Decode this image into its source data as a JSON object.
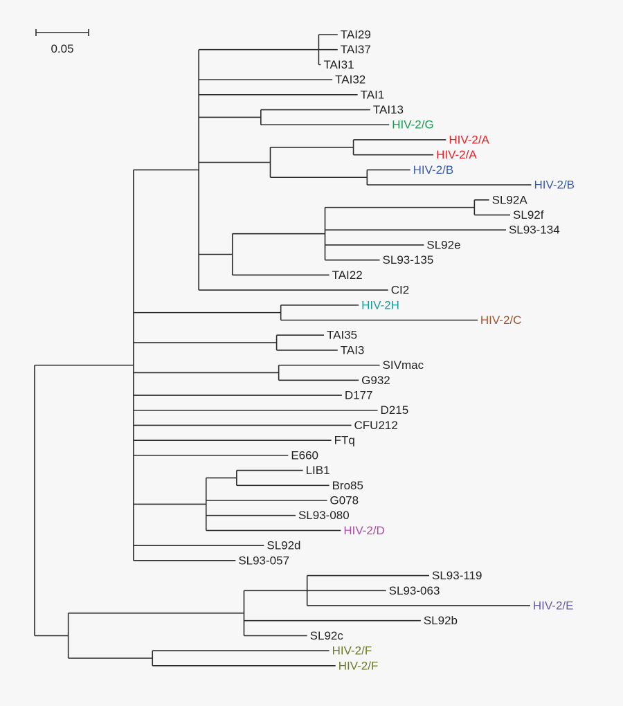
{
  "scale_bar": {
    "label": "0.05",
    "value": 0.05
  },
  "colors": {
    "default": "#222222",
    "HIV-2/A": "#e8202a",
    "HIV-2/B": "#3a5aa8",
    "HIV-2/G": "#1a9a50",
    "HIV-2H": "#1a9a9a",
    "HIV-2/C": "#a0522d",
    "HIV-2/D": "#b04aa8",
    "HIV-2/E": "#6a5aaa",
    "HIV-2/F": "#6b7a2a"
  },
  "tree": {
    "depth": 0,
    "children": [
      {
        "depth": 0.094,
        "children": [
          {
            "depth": 0.156,
            "children": [
              {
                "depth": 0.27,
                "children": [
                  {
                    "label": "TAI29",
                    "depth": 0.288
                  },
                  {
                    "label": "TAI37",
                    "depth": 0.288
                  },
                  {
                    "label": "TAI31",
                    "depth": 0.272
                  }
                ]
              },
              {
                "label": "TAI32",
                "depth": 0.283
              },
              {
                "label": "TAI1",
                "depth": 0.307
              },
              {
                "depth": 0.215,
                "children": [
                  {
                    "label": "TAI13",
                    "depth": 0.319
                  },
                  {
                    "label": "HIV-2/G",
                    "depth": 0.337
                  }
                ]
              },
              {
                "depth": 0.224,
                "children": [
                  {
                    "depth": 0.303,
                    "children": [
                      {
                        "label": "HIV-2/A",
                        "depth": 0.391
                      },
                      {
                        "label": "HIV-2/A",
                        "depth": 0.379
                      }
                    ]
                  },
                  {
                    "depth": 0.316,
                    "children": [
                      {
                        "label": "HIV-2/B",
                        "depth": 0.357
                      },
                      {
                        "label": "HIV-2/B",
                        "depth": 0.472
                      }
                    ]
                  }
                ]
              },
              {
                "depth": 0.188,
                "children": [
                  {
                    "depth": 0.276,
                    "children": [
                      {
                        "depth": 0.418,
                        "children": [
                          {
                            "label": "SL92A",
                            "depth": 0.432
                          },
                          {
                            "label": "SL92f",
                            "depth": 0.452
                          }
                        ]
                      },
                      {
                        "label": "SL93-134",
                        "depth": 0.448
                      },
                      {
                        "label": "SL92e",
                        "depth": 0.37
                      },
                      {
                        "label": "SL93-135",
                        "depth": 0.328
                      }
                    ]
                  },
                  {
                    "label": "TAI22",
                    "depth": 0.28
                  }
                ]
              },
              {
                "label": "CI2",
                "depth": 0.336
              }
            ]
          },
          {
            "depth": 0.234,
            "children": [
              {
                "label": "HIV-2H",
                "depth": 0.308
              },
              {
                "label": "HIV-2/C",
                "depth": 0.421
              }
            ]
          },
          {
            "depth": 0.23,
            "children": [
              {
                "label": "TAI35",
                "depth": 0.275
              },
              {
                "label": "TAI3",
                "depth": 0.288
              }
            ]
          },
          {
            "depth": 0.232,
            "children": [
              {
                "label": "SIVmac",
                "depth": 0.328
              },
              {
                "label": "G932",
                "depth": 0.308
              }
            ]
          },
          {
            "label": "D177",
            "depth": 0.292
          },
          {
            "label": "D215",
            "depth": 0.326
          },
          {
            "label": "CFU212",
            "depth": 0.301
          },
          {
            "label": "FTq",
            "depth": 0.282
          },
          {
            "label": "E660",
            "depth": 0.241
          },
          {
            "depth": 0.163,
            "children": [
              {
                "depth": 0.192,
                "children": [
                  {
                    "label": "LIB1",
                    "depth": 0.255
                  },
                  {
                    "label": "Bro85",
                    "depth": 0.28
                  }
                ]
              },
              {
                "label": "G078",
                "depth": 0.278
              },
              {
                "label": "SL93-080",
                "depth": 0.248
              },
              {
                "label": "HIV-2/D",
                "depth": 0.291
              }
            ]
          },
          {
            "label": "SL92d",
            "depth": 0.218
          },
          {
            "label": "SL93-057",
            "depth": 0.191
          }
        ]
      },
      {
        "depth": 0.032,
        "children": [
          {
            "depth": 0.199,
            "children": [
              {
                "depth": 0.259,
                "children": [
                  {
                    "label": "SL93-119",
                    "depth": 0.375
                  },
                  {
                    "label": "SL93-063",
                    "depth": 0.334
                  },
                  {
                    "label": "HIV-2/E",
                    "depth": 0.471
                  }
                ]
              },
              {
                "label": "SL92b",
                "depth": 0.367
              },
              {
                "label": "SL92c",
                "depth": 0.259
              }
            ]
          },
          {
            "depth": 0.112,
            "children": [
              {
                "label": "HIV-2/F",
                "depth": 0.28
              },
              {
                "label": "HIV-2/F",
                "depth": 0.286
              }
            ]
          }
        ]
      }
    ]
  }
}
